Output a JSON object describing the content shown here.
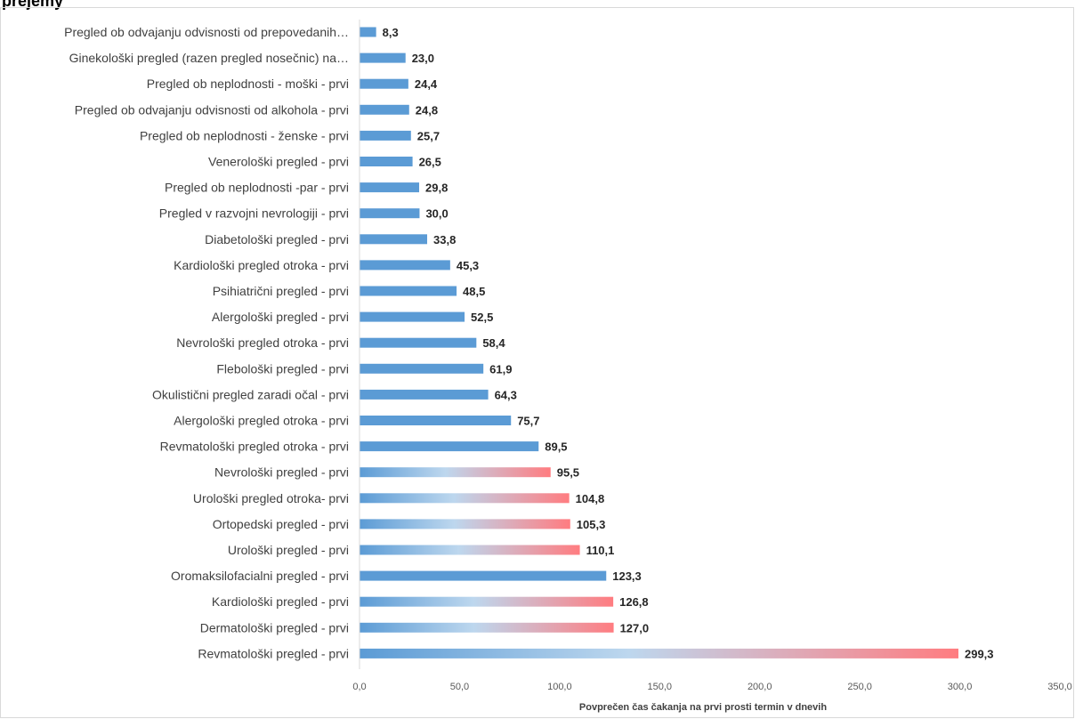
{
  "header": {
    "clipped_title": "prejemy"
  },
  "chart_data": {
    "type": "bar",
    "orientation": "horizontal",
    "title": "",
    "xlabel": "Povprečen čas čakanja na prvi prosti termin v dnevih",
    "ylabel": "",
    "xlim": [
      0,
      350
    ],
    "xticks": [
      "0,0",
      "50,0",
      "100,0",
      "150,0",
      "200,0",
      "250,0",
      "300,0",
      "350,0"
    ],
    "grid": false,
    "categories": [
      "Pregled ob odvajanju odvisnosti od prepovedanih…",
      "Ginekološki pregled (razen pregled nosečnic) na…",
      "Pregled ob neplodnosti - moški - prvi",
      "Pregled ob odvajanju odvisnosti od alkohola - prvi",
      "Pregled ob neplodnosti - ženske - prvi",
      "Venerološki pregled - prvi",
      "Pregled ob neplodnosti -par - prvi",
      "Pregled v razvojni nevrologiji - prvi",
      "Diabetološki pregled - prvi",
      "Kardiološki pregled otroka - prvi",
      "Psihiatrični pregled - prvi",
      "Alergološki pregled - prvi",
      "Nevrološki pregled otroka - prvi",
      "Flebološki pregled - prvi",
      "Okulistični pregled zaradi očal - prvi",
      "Alergološki pregled otroka - prvi",
      "Revmatološki pregled otroka - prvi",
      "Nevrološki pregled - prvi",
      "Urološki pregled otroka- prvi",
      "Ortopedski pregled - prvi",
      "Urološki pregled - prvi",
      "Oromaksilofacialni pregled - prvi",
      "Kardiološki pregled - prvi",
      "Dermatološki pregled - prvi",
      "Revmatološki pregled - prvi"
    ],
    "values": [
      8.3,
      23.0,
      24.4,
      24.8,
      25.7,
      26.5,
      29.8,
      30.0,
      33.8,
      45.3,
      48.5,
      52.5,
      58.4,
      61.9,
      64.3,
      75.7,
      89.5,
      95.5,
      104.8,
      105.3,
      110.1,
      123.3,
      126.8,
      127.0,
      299.3
    ],
    "value_labels": [
      "8,3",
      "23,0",
      "24,4",
      "24,8",
      "25,7",
      "26,5",
      "29,8",
      "30,0",
      "33,8",
      "45,3",
      "48,5",
      "52,5",
      "58,4",
      "61,9",
      "64,3",
      "75,7",
      "89,5",
      "95,5",
      "104,8",
      "105,3",
      "110,1",
      "123,3",
      "126,8",
      "127,0",
      "299,3"
    ],
    "bar_styles": [
      "solid",
      "solid",
      "solid",
      "solid",
      "solid",
      "solid",
      "solid",
      "solid",
      "solid",
      "solid",
      "solid",
      "solid",
      "solid",
      "solid",
      "solid",
      "solid",
      "solid",
      "gradient",
      "gradient",
      "gradient",
      "gradient",
      "solid",
      "gradient",
      "gradient",
      "gradient"
    ],
    "colors": {
      "solid": "#5b9bd5",
      "gradient_start": "#5b9bd5",
      "gradient_mid": "#bdd7ee",
      "gradient_end": "#ff7c80",
      "axis": "#d9d9d9"
    }
  }
}
